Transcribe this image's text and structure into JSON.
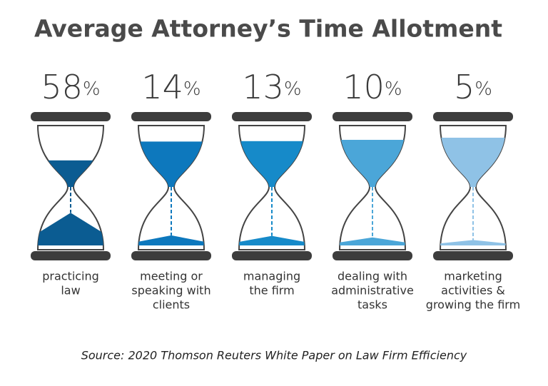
{
  "chart_data": {
    "type": "hourglass",
    "title": "Average Attorney’s Time Allotment",
    "categories": [
      [
        "practicing",
        "law"
      ],
      [
        "meeting or",
        "speaking with",
        "clients"
      ],
      [
        "managing",
        "the firm"
      ],
      [
        "dealing with",
        "administrative",
        "tasks"
      ],
      [
        "marketing",
        "activities &",
        "growing the firm"
      ]
    ],
    "values": [
      58,
      14,
      13,
      10,
      5
    ],
    "value_labels": [
      "58%",
      "14%",
      "13%",
      "10%",
      "5%"
    ],
    "colors": [
      "#0b5c92",
      "#0d78bd",
      "#168ac9",
      "#4ba6d8",
      "#8fc2e6"
    ],
    "source": "Source: 2020 Thomson Reuters White Paper on Law Firm Efficiency"
  }
}
